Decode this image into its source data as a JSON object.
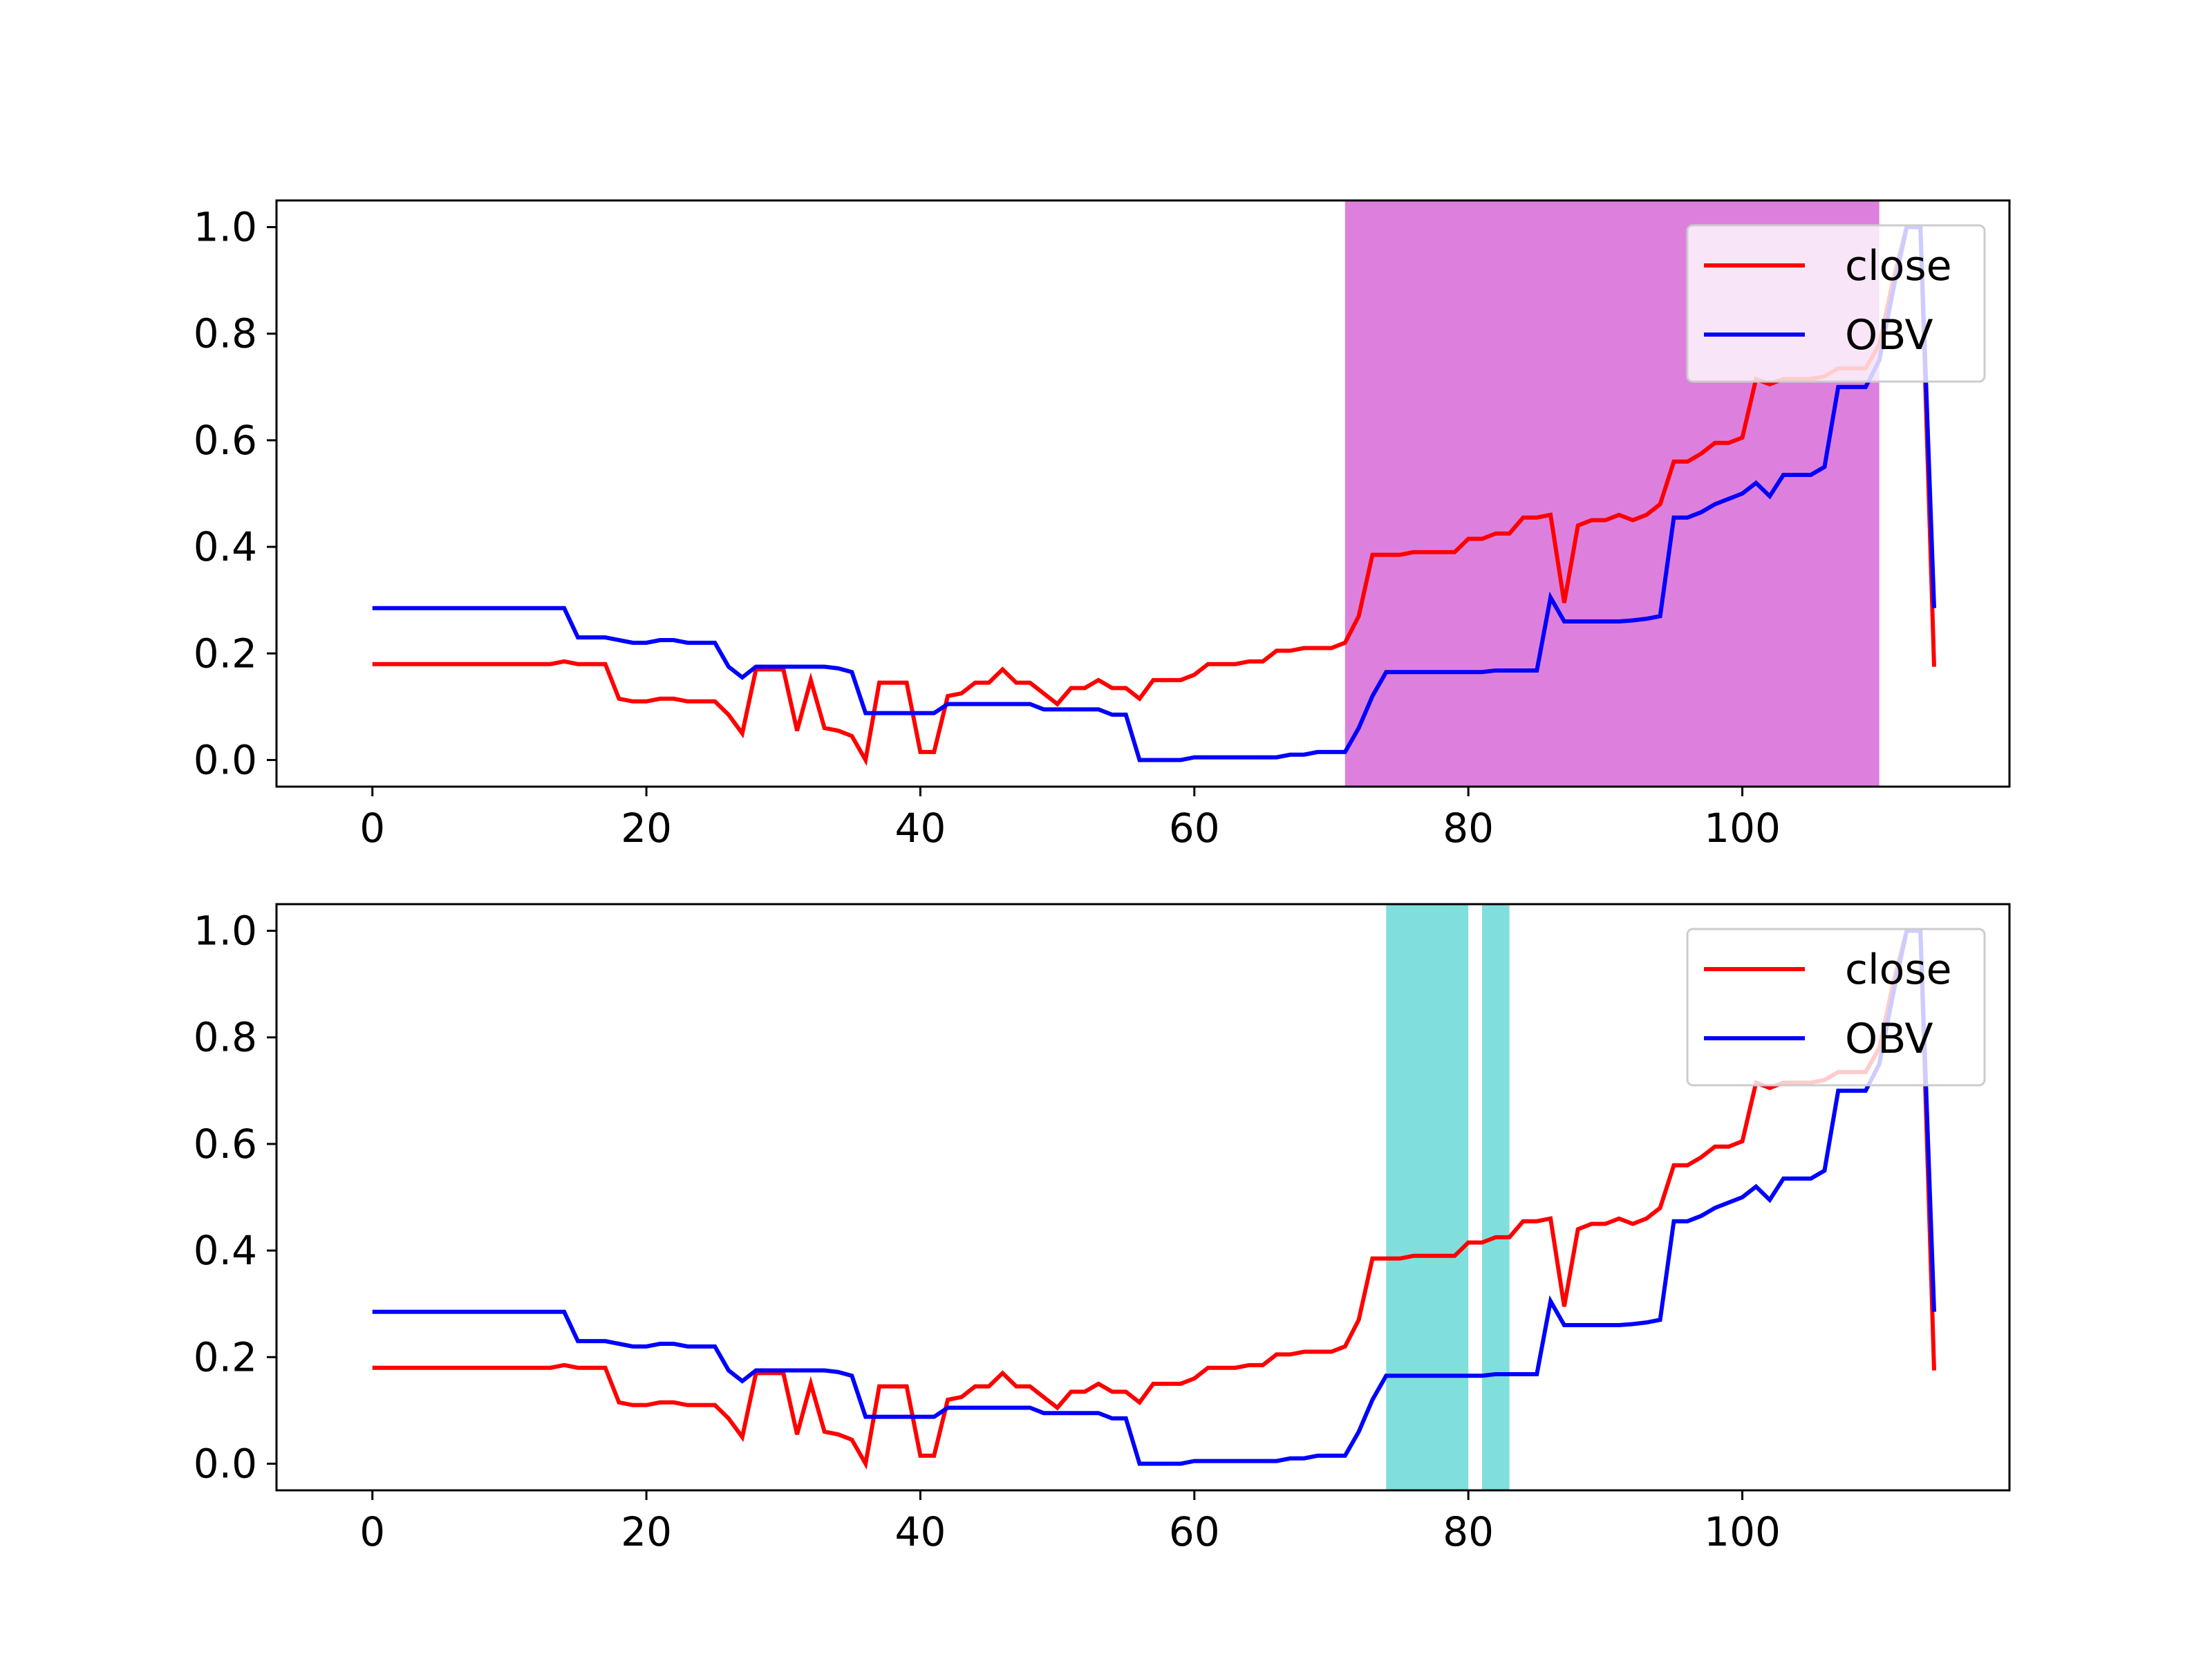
{
  "chart_data": [
    {
      "type": "line",
      "xlim": [
        -7,
        119.5
      ],
      "ylim": [
        -0.05,
        1.05
      ],
      "xticks": [
        0,
        20,
        40,
        60,
        80,
        100
      ],
      "xtick_labels": [
        "0",
        "20",
        "40",
        "60",
        "80",
        "100"
      ],
      "yticks": [
        0.0,
        0.2,
        0.4,
        0.6,
        0.8,
        1.0
      ],
      "ytick_labels": [
        "0.0",
        "0.2",
        "0.4",
        "0.6",
        "0.8",
        "1.0"
      ],
      "grid": false,
      "legend_position": "upper right",
      "shaded_regions": [
        {
          "x_start": 71,
          "x_end": 110,
          "color": "#dd80dd"
        }
      ],
      "series": [
        {
          "name": "close",
          "color": "#ff0000",
          "values": "close"
        },
        {
          "name": "OBV",
          "color": "#0000ff",
          "values": "obv"
        }
      ]
    },
    {
      "type": "line",
      "xlim": [
        -7,
        119.5
      ],
      "ylim": [
        -0.05,
        1.05
      ],
      "xticks": [
        0,
        20,
        40,
        60,
        80,
        100
      ],
      "xtick_labels": [
        "0",
        "20",
        "40",
        "60",
        "80",
        "100"
      ],
      "yticks": [
        0.0,
        0.2,
        0.4,
        0.6,
        0.8,
        1.0
      ],
      "ytick_labels": [
        "0.0",
        "0.2",
        "0.4",
        "0.6",
        "0.8",
        "1.0"
      ],
      "grid": false,
      "legend_position": "upper right",
      "shaded_regions": [
        {
          "x_start": 74,
          "x_end": 80,
          "color": "#80dfdc"
        },
        {
          "x_start": 81,
          "x_end": 83,
          "color": "#80dfdc"
        }
      ],
      "series": [
        {
          "name": "close",
          "color": "#ff0000",
          "values": "close"
        },
        {
          "name": "OBV",
          "color": "#0000ff",
          "values": "obv"
        }
      ]
    }
  ],
  "series_values": {
    "close": [
      0.18,
      0.18,
      0.18,
      0.18,
      0.18,
      0.18,
      0.18,
      0.18,
      0.18,
      0.18,
      0.18,
      0.18,
      0.18,
      0.18,
      0.185,
      0.18,
      0.18,
      0.18,
      0.115,
      0.11,
      0.11,
      0.115,
      0.115,
      0.11,
      0.11,
      0.11,
      0.085,
      0.05,
      0.17,
      0.17,
      0.17,
      0.055,
      0.15,
      0.06,
      0.055,
      0.045,
      0.0,
      0.145,
      0.145,
      0.145,
      0.015,
      0.015,
      0.12,
      0.125,
      0.145,
      0.145,
      0.17,
      0.145,
      0.145,
      0.125,
      0.105,
      0.135,
      0.135,
      0.15,
      0.135,
      0.135,
      0.115,
      0.15,
      0.15,
      0.15,
      0.16,
      0.18,
      0.18,
      0.18,
      0.185,
      0.185,
      0.205,
      0.205,
      0.21,
      0.21,
      0.21,
      0.22,
      0.27,
      0.385,
      0.385,
      0.385,
      0.39,
      0.39,
      0.39,
      0.39,
      0.415,
      0.415,
      0.425,
      0.425,
      0.455,
      0.455,
      0.46,
      0.295,
      0.44,
      0.45,
      0.45,
      0.46,
      0.45,
      0.46,
      0.48,
      0.56,
      0.56,
      0.575,
      0.595,
      0.595,
      0.605,
      0.715,
      0.705,
      0.715,
      0.715,
      0.715,
      0.72,
      0.735,
      0.735,
      0.735,
      0.78,
      0.9,
      1.0,
      1.0,
      0.175
    ],
    "obv": [
      0.285,
      0.285,
      0.285,
      0.285,
      0.285,
      0.285,
      0.285,
      0.285,
      0.285,
      0.285,
      0.285,
      0.285,
      0.285,
      0.285,
      0.285,
      0.23,
      0.23,
      0.23,
      0.225,
      0.22,
      0.22,
      0.225,
      0.225,
      0.22,
      0.22,
      0.22,
      0.175,
      0.155,
      0.175,
      0.175,
      0.175,
      0.175,
      0.175,
      0.175,
      0.172,
      0.165,
      0.088,
      0.088,
      0.088,
      0.088,
      0.088,
      0.088,
      0.105,
      0.105,
      0.105,
      0.105,
      0.105,
      0.105,
      0.105,
      0.095,
      0.095,
      0.095,
      0.095,
      0.095,
      0.085,
      0.085,
      0.0,
      0.0,
      0.0,
      0.0,
      0.005,
      0.005,
      0.005,
      0.005,
      0.005,
      0.005,
      0.005,
      0.01,
      0.01,
      0.015,
      0.015,
      0.015,
      0.06,
      0.12,
      0.165,
      0.165,
      0.165,
      0.165,
      0.165,
      0.165,
      0.165,
      0.165,
      0.168,
      0.168,
      0.168,
      0.168,
      0.305,
      0.26,
      0.26,
      0.26,
      0.26,
      0.26,
      0.262,
      0.265,
      0.27,
      0.455,
      0.455,
      0.465,
      0.48,
      0.49,
      0.5,
      0.52,
      0.495,
      0.535,
      0.535,
      0.535,
      0.55,
      0.7,
      0.7,
      0.7,
      0.75,
      0.88,
      1.0,
      1.0,
      0.285
    ]
  }
}
